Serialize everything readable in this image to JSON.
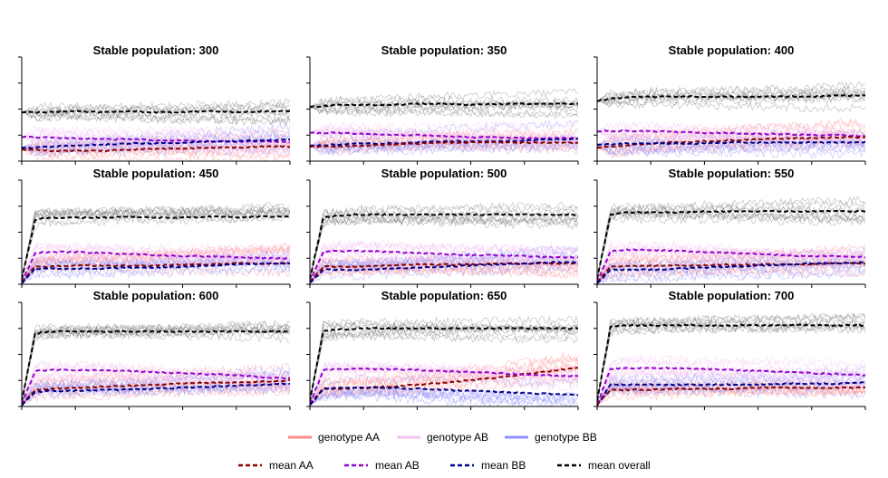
{
  "chart_data": {
    "type": "line",
    "layout": "3x3 panel grid",
    "x_ticks_labeled": false,
    "y_ticks_labeled": false,
    "grid": false,
    "legend_placement": "bottom-center",
    "series_styles": {
      "genotype AA": {
        "color": "#ff8c8c",
        "kind": "individual runs"
      },
      "genotype AB": {
        "color": "#f4c2f0",
        "kind": "individual runs"
      },
      "genotype BB": {
        "color": "#9090ff",
        "kind": "individual runs"
      },
      "overall": {
        "color": "#606060",
        "kind": "individual runs"
      },
      "mean AA": {
        "color": "#8b0000",
        "kind": "dashed mean"
      },
      "mean AB": {
        "color": "#9400d3",
        "kind": "dashed mean"
      },
      "mean BB": {
        "color": "#00008b",
        "kind": "dashed mean"
      },
      "mean overall": {
        "color": "#000000",
        "kind": "dashed mean"
      }
    },
    "x": [
      0,
      0.05,
      0.1,
      0.2,
      0.3,
      0.4,
      0.5,
      0.6,
      0.7,
      0.8,
      0.9,
      1.0
    ],
    "y_range": [
      0,
      1
    ],
    "panels": [
      {
        "title": "Stable population: 300",
        "series": [
          {
            "name": "mean overall",
            "values": [
              0.47,
              0.47,
              0.47,
              0.48,
              0.47,
              0.48,
              0.47,
              0.47,
              0.48,
              0.47,
              0.48,
              0.48
            ]
          },
          {
            "name": "mean AB",
            "values": [
              0.23,
              0.23,
              0.23,
              0.22,
              0.21,
              0.21,
              0.2,
              0.2,
              0.19,
              0.19,
              0.19,
              0.18
            ]
          },
          {
            "name": "mean BB",
            "values": [
              0.13,
              0.13,
              0.14,
              0.15,
              0.16,
              0.17,
              0.17,
              0.18,
              0.19,
              0.19,
              0.2,
              0.21
            ]
          },
          {
            "name": "mean AA",
            "values": [
              0.11,
              0.11,
              0.1,
              0.1,
              0.1,
              0.11,
              0.12,
              0.12,
              0.13,
              0.13,
              0.14,
              0.14
            ]
          }
        ]
      },
      {
        "title": "Stable population: 350",
        "series": [
          {
            "name": "mean overall",
            "values": [
              0.52,
              0.53,
              0.54,
              0.54,
              0.54,
              0.55,
              0.55,
              0.54,
              0.55,
              0.55,
              0.55,
              0.55
            ]
          },
          {
            "name": "mean AB",
            "values": [
              0.27,
              0.27,
              0.27,
              0.26,
              0.25,
              0.25,
              0.24,
              0.23,
              0.23,
              0.22,
              0.22,
              0.22
            ]
          },
          {
            "name": "mean BB",
            "values": [
              0.15,
              0.15,
              0.16,
              0.17,
              0.17,
              0.18,
              0.19,
              0.19,
              0.19,
              0.2,
              0.21,
              0.21
            ]
          },
          {
            "name": "mean AA",
            "values": [
              0.14,
              0.14,
              0.14,
              0.15,
              0.16,
              0.17,
              0.18,
              0.18,
              0.18,
              0.18,
              0.18,
              0.18
            ]
          }
        ]
      },
      {
        "title": "Stable population: 400",
        "series": [
          {
            "name": "mean overall",
            "values": [
              0.58,
              0.6,
              0.61,
              0.62,
              0.62,
              0.62,
              0.62,
              0.62,
              0.62,
              0.62,
              0.63,
              0.63
            ]
          },
          {
            "name": "mean AB",
            "values": [
              0.29,
              0.29,
              0.29,
              0.29,
              0.28,
              0.27,
              0.27,
              0.26,
              0.26,
              0.25,
              0.25,
              0.24
            ]
          },
          {
            "name": "mean AA",
            "values": [
              0.13,
              0.14,
              0.15,
              0.17,
              0.18,
              0.19,
              0.2,
              0.21,
              0.22,
              0.22,
              0.23,
              0.23
            ]
          },
          {
            "name": "mean BB",
            "values": [
              0.16,
              0.16,
              0.17,
              0.17,
              0.17,
              0.17,
              0.18,
              0.18,
              0.18,
              0.18,
              0.18,
              0.18
            ]
          }
        ]
      },
      {
        "title": "Stable population: 450",
        "series": [
          {
            "name": "mean overall",
            "values": [
              0.05,
              0.62,
              0.64,
              0.64,
              0.64,
              0.65,
              0.64,
              0.64,
              0.65,
              0.64,
              0.65,
              0.65
            ]
          },
          {
            "name": "mean AB",
            "values": [
              0.02,
              0.3,
              0.31,
              0.31,
              0.3,
              0.29,
              0.28,
              0.27,
              0.27,
              0.26,
              0.25,
              0.25
            ]
          },
          {
            "name": "mean AA",
            "values": [
              0.02,
              0.17,
              0.17,
              0.18,
              0.18,
              0.18,
              0.18,
              0.19,
              0.19,
              0.2,
              0.2,
              0.2
            ]
          },
          {
            "name": "mean BB",
            "values": [
              0.01,
              0.15,
              0.15,
              0.15,
              0.15,
              0.16,
              0.16,
              0.17,
              0.18,
              0.19,
              0.2,
              0.2
            ]
          }
        ]
      },
      {
        "title": "Stable population: 500",
        "series": [
          {
            "name": "mean overall",
            "values": [
              0.05,
              0.64,
              0.66,
              0.67,
              0.67,
              0.67,
              0.67,
              0.67,
              0.67,
              0.67,
              0.67,
              0.67
            ]
          },
          {
            "name": "mean AB",
            "values": [
              0.02,
              0.31,
              0.32,
              0.32,
              0.31,
              0.3,
              0.29,
              0.28,
              0.28,
              0.27,
              0.26,
              0.26
            ]
          },
          {
            "name": "mean AA",
            "values": [
              0.02,
              0.17,
              0.17,
              0.17,
              0.18,
              0.19,
              0.19,
              0.19,
              0.2,
              0.2,
              0.2,
              0.2
            ]
          },
          {
            "name": "mean BB",
            "values": [
              0.01,
              0.14,
              0.14,
              0.14,
              0.15,
              0.16,
              0.17,
              0.18,
              0.19,
              0.2,
              0.21,
              0.21
            ]
          }
        ]
      },
      {
        "title": "Stable population: 550",
        "series": [
          {
            "name": "mean overall",
            "values": [
              0.05,
              0.67,
              0.69,
              0.69,
              0.69,
              0.7,
              0.7,
              0.7,
              0.7,
              0.7,
              0.7,
              0.7
            ]
          },
          {
            "name": "mean AB",
            "values": [
              0.02,
              0.32,
              0.33,
              0.33,
              0.32,
              0.31,
              0.3,
              0.29,
              0.28,
              0.27,
              0.27,
              0.26
            ]
          },
          {
            "name": "mean AA",
            "values": [
              0.02,
              0.17,
              0.17,
              0.18,
              0.18,
              0.18,
              0.19,
              0.19,
              0.19,
              0.19,
              0.2,
              0.2
            ]
          },
          {
            "name": "mean BB",
            "values": [
              0.01,
              0.14,
              0.14,
              0.14,
              0.15,
              0.16,
              0.17,
              0.18,
              0.19,
              0.2,
              0.2,
              0.21
            ]
          }
        ]
      },
      {
        "title": "Stable population: 600",
        "series": [
          {
            "name": "mean overall",
            "values": [
              0.05,
              0.7,
              0.72,
              0.72,
              0.72,
              0.72,
              0.72,
              0.72,
              0.72,
              0.72,
              0.72,
              0.72
            ]
          },
          {
            "name": "mean AB",
            "values": [
              0.02,
              0.34,
              0.35,
              0.35,
              0.35,
              0.34,
              0.33,
              0.32,
              0.31,
              0.3,
              0.28,
              0.27
            ]
          },
          {
            "name": "mean AA",
            "values": [
              0.02,
              0.16,
              0.17,
              0.18,
              0.19,
              0.2,
              0.21,
              0.22,
              0.23,
              0.23,
              0.24,
              0.25
            ]
          },
          {
            "name": "mean BB",
            "values": [
              0.01,
              0.14,
              0.15,
              0.15,
              0.16,
              0.16,
              0.17,
              0.18,
              0.19,
              0.2,
              0.21,
              0.22
            ]
          }
        ]
      },
      {
        "title": "Stable population: 650",
        "series": [
          {
            "name": "mean overall",
            "values": [
              0.05,
              0.73,
              0.74,
              0.75,
              0.75,
              0.75,
              0.75,
              0.75,
              0.75,
              0.75,
              0.75,
              0.75
            ]
          },
          {
            "name": "mean AA",
            "values": [
              0.02,
              0.17,
              0.17,
              0.18,
              0.19,
              0.21,
              0.23,
              0.25,
              0.28,
              0.31,
              0.34,
              0.37
            ]
          },
          {
            "name": "mean AB",
            "values": [
              0.02,
              0.35,
              0.36,
              0.36,
              0.36,
              0.35,
              0.34,
              0.33,
              0.32,
              0.31,
              0.3,
              0.29
            ]
          },
          {
            "name": "mean BB",
            "values": [
              0.01,
              0.17,
              0.18,
              0.18,
              0.18,
              0.17,
              0.16,
              0.15,
              0.14,
              0.13,
              0.12,
              0.11
            ]
          }
        ]
      },
      {
        "title": "Stable population: 700",
        "series": [
          {
            "name": "mean overall",
            "values": [
              0.05,
              0.77,
              0.78,
              0.78,
              0.78,
              0.78,
              0.78,
              0.78,
              0.78,
              0.78,
              0.78,
              0.78
            ]
          },
          {
            "name": "mean AB",
            "values": [
              0.02,
              0.36,
              0.37,
              0.37,
              0.37,
              0.36,
              0.35,
              0.34,
              0.33,
              0.32,
              0.31,
              0.3
            ]
          },
          {
            "name": "mean BB",
            "values": [
              0.01,
              0.21,
              0.21,
              0.21,
              0.21,
              0.21,
              0.21,
              0.21,
              0.22,
              0.22,
              0.22,
              0.23
            ]
          },
          {
            "name": "mean AA",
            "values": [
              0.02,
              0.16,
              0.16,
              0.16,
              0.17,
              0.17,
              0.17,
              0.18,
              0.18,
              0.18,
              0.18,
              0.18
            ]
          }
        ]
      }
    ],
    "legend": {
      "row1": [
        {
          "label": "genotype AA",
          "color": "#ff8c8c",
          "style": "solid"
        },
        {
          "label": "genotype AB",
          "color": "#f4c2f0",
          "style": "solid"
        },
        {
          "label": "genotype BB",
          "color": "#9090ff",
          "style": "solid"
        }
      ],
      "row2": [
        {
          "label": "mean AA",
          "color": "#8b0000",
          "style": "dashed"
        },
        {
          "label": "mean AB",
          "color": "#9400d3",
          "style": "dashed"
        },
        {
          "label": "mean BB",
          "color": "#00008b",
          "style": "dashed"
        },
        {
          "label": "mean overall",
          "color": "#000000",
          "style": "dashed"
        }
      ]
    }
  }
}
